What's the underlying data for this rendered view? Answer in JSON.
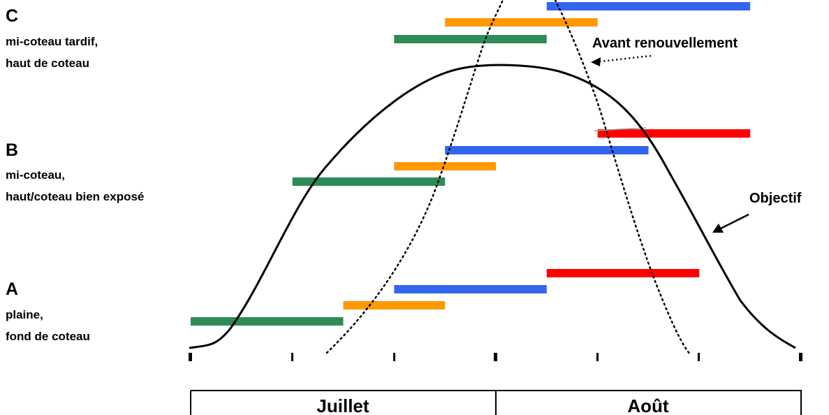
{
  "colors": {
    "green": "#2e8b57",
    "orange": "#ff9900",
    "blue": "#3366ee",
    "red": "#ff0000",
    "line": "#000000"
  },
  "groups": [
    {
      "letter": "C",
      "desc": [
        "mi-coteau tardif,",
        "haut de coteau"
      ]
    },
    {
      "letter": "B",
      "desc": [
        "mi-coteau,",
        "haut/coteau bien exposé"
      ]
    },
    {
      "letter": "A",
      "desc": [
        "plaine,",
        "fond de coteau"
      ]
    }
  ],
  "annotations": {
    "before": "Avant renouvellement",
    "target": "Objectif"
  },
  "months": [
    "Juillet",
    "Août"
  ],
  "bars": [
    {
      "group": "A",
      "color": "green",
      "start": 0,
      "end": 3
    },
    {
      "group": "A",
      "color": "orange",
      "start": 3,
      "end": 5
    },
    {
      "group": "A",
      "color": "blue",
      "start": 4,
      "end": 7
    },
    {
      "group": "A",
      "color": "red",
      "start": 7,
      "end": 10
    },
    {
      "group": "B",
      "color": "green",
      "start": 2,
      "end": 5
    },
    {
      "group": "B",
      "color": "orange",
      "start": 4,
      "end": 6
    },
    {
      "group": "B",
      "color": "blue",
      "start": 5,
      "end": 9
    },
    {
      "group": "B",
      "color": "red",
      "start": 8,
      "end": 11
    },
    {
      "group": "C",
      "color": "green",
      "start": 4,
      "end": 7
    },
    {
      "group": "C",
      "color": "orange",
      "start": 5,
      "end": 8
    },
    {
      "group": "C",
      "color": "blue",
      "start": 7,
      "end": 11
    }
  ]
}
